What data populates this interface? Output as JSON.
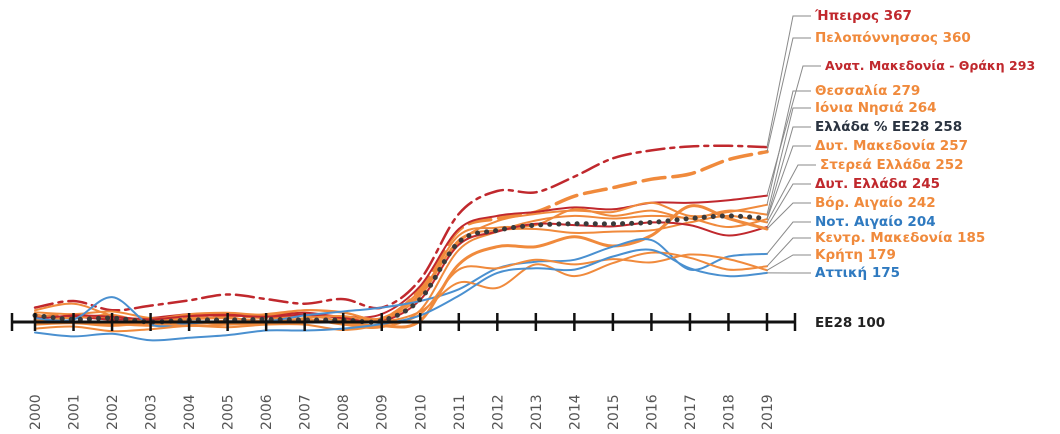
{
  "chart_data": {
    "type": "line",
    "x": [
      "2000",
      "2001",
      "2002",
      "2003",
      "2004",
      "2005",
      "2006",
      "2007",
      "2008",
      "2009",
      "2010",
      "2011",
      "2012",
      "2013",
      "2014",
      "2015",
      "2016",
      "2017",
      "2018",
      "2019"
    ],
    "baseline": {
      "label": "ΕΕ28 100",
      "value": 100
    },
    "ylim": [
      70,
      380
    ],
    "series": [
      {
        "name": "Ήπειρος 367",
        "color": "#c0282d",
        "dash": "18,6,4,6",
        "width": 2.5,
        "values": [
          122,
          132,
          118,
          125,
          133,
          142,
          135,
          128,
          135,
          122,
          165,
          265,
          300,
          298,
          322,
          350,
          362,
          368,
          369,
          367
        ]
      },
      {
        "name": "Πελοπόννησσος 360",
        "color": "#f08a3c",
        "dash": "22,8",
        "width": 3.5,
        "values": [
          108,
          110,
          105,
          104,
          106,
          110,
          107,
          109,
          106,
          104,
          150,
          240,
          258,
          268,
          292,
          305,
          318,
          326,
          348,
          360
        ]
      },
      {
        "name": "Ανατ. Μακεδονία - Θράκη 293",
        "color": "#c0282d",
        "dash": "",
        "width": 2,
        "values": [
          108,
          108,
          104,
          106,
          112,
          112,
          110,
          114,
          108,
          112,
          155,
          242,
          262,
          268,
          275,
          272,
          282,
          282,
          286,
          293
        ]
      },
      {
        "name": "Θεσσαλία 279",
        "color": "#f08a3c",
        "dash": "",
        "width": 2,
        "values": [
          118,
          128,
          110,
          104,
          112,
          114,
          111,
          118,
          114,
          106,
          148,
          222,
          254,
          265,
          270,
          268,
          282,
          262,
          268,
          279
        ]
      },
      {
        "name": "Ιόνια Νησιά 264",
        "color": "#f08a3c",
        "dash": "",
        "width": 2,
        "values": [
          110,
          106,
          111,
          98,
          104,
          106,
          102,
          110,
          102,
          106,
          144,
          232,
          244,
          248,
          272,
          262,
          270,
          258,
          270,
          264
        ]
      },
      {
        "name": "Ελλάδα % ΕΕ28 258",
        "color": "#3a3a3a",
        "dash": "0.1,9",
        "width": 5,
        "values": [
          110,
          104,
          106,
          100,
          103,
          103,
          104,
          103,
          103,
          102,
          135,
          222,
          240,
          248,
          250,
          250,
          252,
          258,
          262,
          258
        ]
      },
      {
        "name": "Δυτ. Μακεδονία 257",
        "color": "#f08a3c",
        "dash": "",
        "width": 2,
        "values": [
          112,
          100,
          95,
          102,
          100,
          97,
          99,
          104,
          96,
          92,
          118,
          210,
          238,
          255,
          262,
          258,
          262,
          258,
          245,
          257
        ]
      },
      {
        "name": "Στερεά Ελλάδα 252",
        "color": "#f08a3c",
        "dash": "",
        "width": 2,
        "values": [
          115,
          112,
          116,
          106,
          105,
          108,
          112,
          118,
          115,
          104,
          140,
          225,
          240,
          242,
          236,
          238,
          240,
          252,
          262,
          252
        ]
      },
      {
        "name": "Δυτ. Ελλάδα 245",
        "color": "#c0282d",
        "dash": "",
        "width": 2,
        "values": [
          104,
          110,
          108,
          104,
          109,
          110,
          108,
          111,
          106,
          101,
          134,
          218,
          238,
          250,
          248,
          246,
          252,
          248,
          232,
          245
        ]
      },
      {
        "name": "Βόρ. Αιγαίο 242",
        "color": "#f08a3c",
        "dash": "",
        "width": 3,
        "values": [
          104,
          100,
          98,
          95,
          97,
          101,
          99,
          103,
          98,
          94,
          102,
          188,
          215,
          215,
          230,
          216,
          232,
          277,
          258,
          242
        ]
      },
      {
        "name": "Νοτ. Αιγαίο 204",
        "color": "#4a90d0",
        "dash": "",
        "width": 2,
        "values": [
          106,
          104,
          138,
          96,
          98,
          101,
          101,
          110,
          116,
          122,
          132,
          150,
          182,
          192,
          195,
          215,
          225,
          180,
          200,
          204
        ]
      },
      {
        "name": "Κεντρ. Μακεδονία 185",
        "color": "#f08a3c",
        "dash": "",
        "width": 2,
        "values": [
          96,
          98,
          94,
          98,
          94,
          96,
          98,
          106,
          109,
          101,
          116,
          160,
          152,
          188,
          170,
          190,
          206,
          198,
          180,
          185
        ]
      },
      {
        "name": "Κρήτη 179",
        "color": "#f08a3c",
        "dash": "",
        "width": 2,
        "values": [
          90,
          93,
          86,
          89,
          94,
          92,
          96,
          96,
          88,
          96,
          112,
          180,
          182,
          195,
          188,
          196,
          191,
          203,
          196,
          179
        ]
      },
      {
        "name": "Αττική 175",
        "color": "#4a90d0",
        "dash": "",
        "width": 2,
        "values": [
          84,
          78,
          82,
          72,
          76,
          80,
          87,
          87,
          90,
          97,
          110,
          140,
          175,
          182,
          180,
          200,
          210,
          182,
          170,
          175
        ]
      }
    ]
  }
}
